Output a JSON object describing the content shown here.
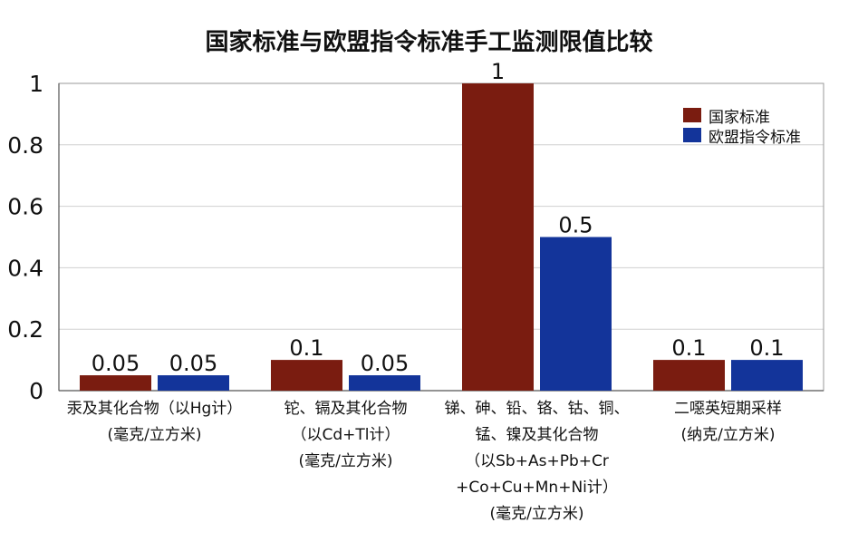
{
  "chart_data": {
    "type": "bar",
    "title": "国家标准与欧盟指令标准手工监测限值比较",
    "categories": [
      [
        "汞及其化合物（以Hg计）",
        "(毫克/立方米)"
      ],
      [
        "铊、镉及其化合物",
        "（以Cd+Tl计）",
        "(毫克/立方米)"
      ],
      [
        "锑、砷、铅、铬、钴、铜、",
        "锰、镍及其化合物",
        "（以Sb+As+Pb+Cr",
        "+Co+Cu+Mn+Ni计）",
        "(毫克/立方米)"
      ],
      [
        "二噁英短期采样",
        "(纳克/立方米)"
      ]
    ],
    "series": [
      {
        "name": "国家标准",
        "color": "#7a1c10",
        "values": [
          0.05,
          0.1,
          1,
          0.1
        ],
        "labels": [
          "0.05",
          "0.1",
          "1",
          "0.1"
        ]
      },
      {
        "name": "欧盟指令标准",
        "color": "#13349a",
        "values": [
          0.05,
          0.05,
          0.5,
          0.1
        ],
        "labels": [
          "0.05",
          "0.05",
          "0.5",
          "0.1"
        ]
      }
    ],
    "yticks": [
      "0",
      "0.2",
      "0.4",
      "0.6",
      "0.8",
      "1"
    ],
    "ylim": [
      0,
      1
    ],
    "grid": true,
    "legend_position": "top-right"
  }
}
